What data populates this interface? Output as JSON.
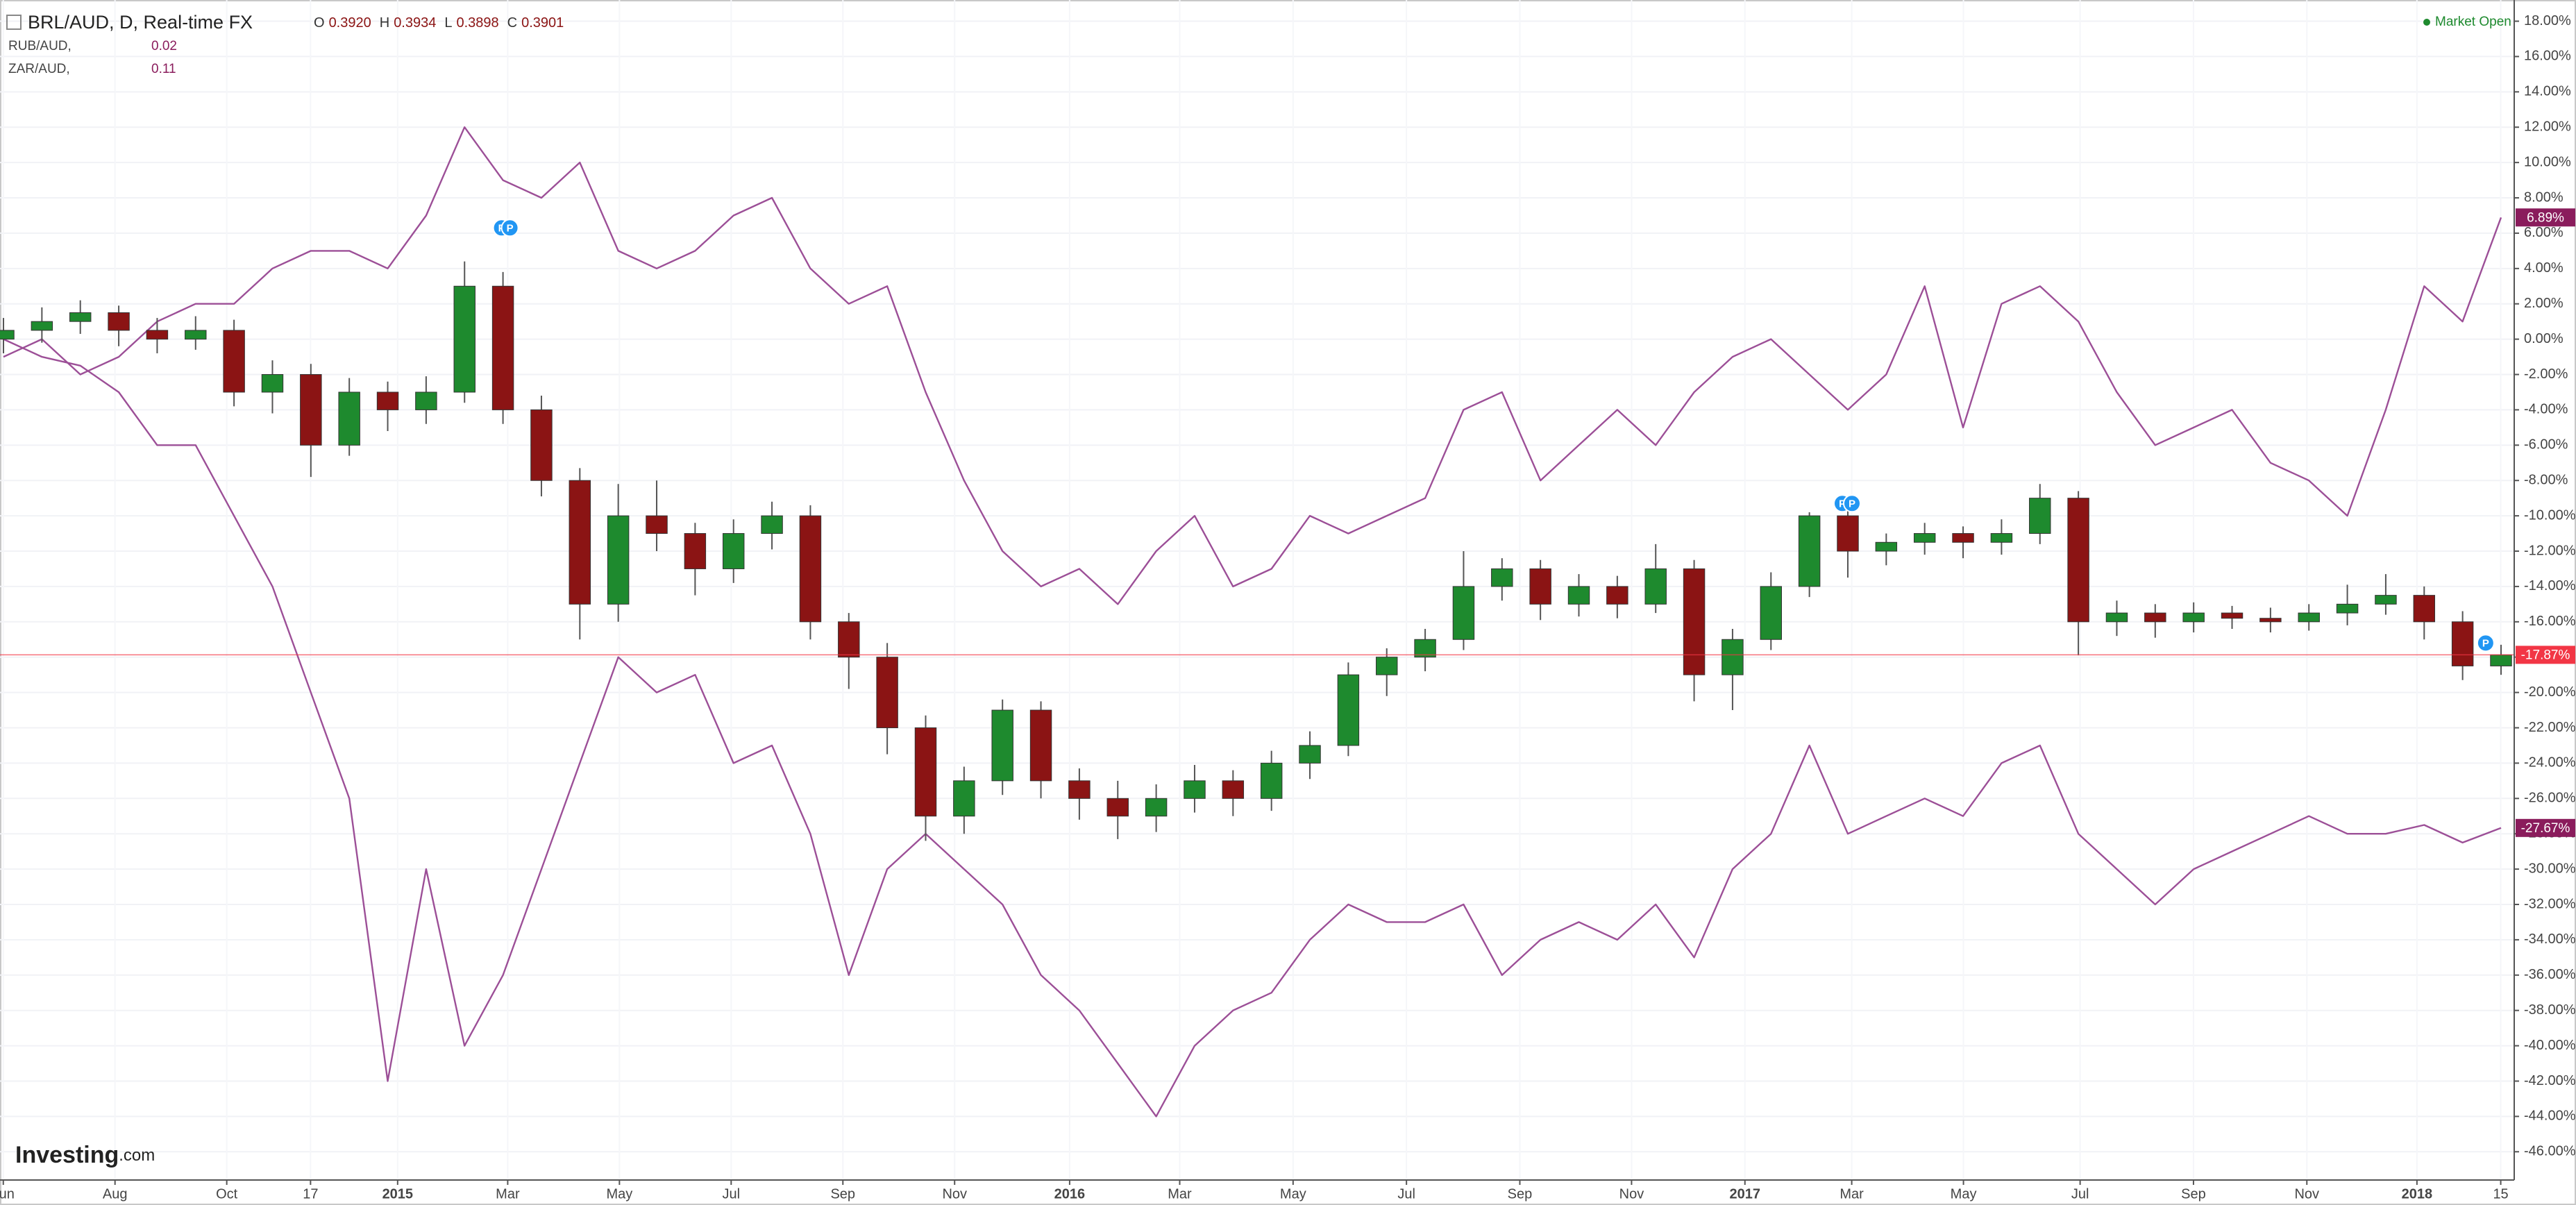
{
  "chart_data": {
    "type": "candlestick",
    "title": "BRL/AUD, D, Real-time FX",
    "ohlc_labels": [
      "O",
      "H",
      "L",
      "C"
    ],
    "ohlc_values": [
      "0.3920",
      "0.3934",
      "0.3898",
      "0.3901"
    ],
    "status": "Market Open",
    "brand": [
      "Investing",
      ".com"
    ],
    "event_marker": "P",
    "up_color": "#1e8a2e",
    "down_color": "#8b1414",
    "last_color": "#f23645",
    "last_label": "-17.87%",
    "candles": [
      [
        0,
        1.2,
        -0.8,
        0.5
      ],
      [
        0.5,
        1.8,
        -0.2,
        1
      ],
      [
        1,
        2.2,
        0.3,
        1.5
      ],
      [
        1.5,
        1.9,
        -0.4,
        0.5
      ],
      [
        0.5,
        1.2,
        -0.8,
        0
      ],
      [
        0,
        1.3,
        -0.6,
        0.5
      ],
      [
        0.5,
        1.1,
        -3.8,
        -3
      ],
      [
        -3,
        -1.2,
        -4.2,
        -2
      ],
      [
        -2,
        -1.4,
        -7.8,
        -6
      ],
      [
        -6,
        -2.2,
        -6.6,
        -3
      ],
      [
        -3,
        -2.4,
        -5.2,
        -4
      ],
      [
        -4,
        -2.1,
        -4.8,
        -3
      ],
      [
        -3,
        4.4,
        -3.6,
        3
      ],
      [
        3,
        3.8,
        -4.8,
        -4
      ],
      [
        -4,
        -3.2,
        -8.9,
        -8
      ],
      [
        -8,
        -7.3,
        -17,
        -15
      ],
      [
        -15,
        -8.2,
        -16,
        -10
      ],
      [
        -10,
        -8,
        -12,
        -11
      ],
      [
        -11,
        -10.4,
        -14.5,
        -13
      ],
      [
        -13,
        -10.2,
        -13.8,
        -11
      ],
      [
        -11,
        -9.2,
        -11.9,
        -10
      ],
      [
        -10,
        -9.4,
        -17,
        -16
      ],
      [
        -16,
        -15.5,
        -19.8,
        -18
      ],
      [
        -18,
        -17.2,
        -23.5,
        -22
      ],
      [
        -22,
        -21.3,
        -28.4,
        -27
      ],
      [
        -27,
        -24.2,
        -28,
        -25
      ],
      [
        -25,
        -20.4,
        -25.8,
        -21
      ],
      [
        -21,
        -20.5,
        -26,
        -25
      ],
      [
        -25,
        -24.3,
        -27.2,
        -26
      ],
      [
        -26,
        -25,
        -28.3,
        -27
      ],
      [
        -27,
        -25.2,
        -27.9,
        -26
      ],
      [
        -26,
        -24.1,
        -26.8,
        -25
      ],
      [
        -25,
        -24.4,
        -27,
        -26
      ],
      [
        -26,
        -23.3,
        -26.7,
        -24
      ],
      [
        -24,
        -22.2,
        -24.9,
        -23
      ],
      [
        -23,
        -18.3,
        -23.6,
        -19
      ],
      [
        -19,
        -17.5,
        -20.2,
        -18
      ],
      [
        -18,
        -16.4,
        -18.8,
        -17
      ],
      [
        -17,
        -12,
        -17.6,
        -14
      ],
      [
        -14,
        -12.4,
        -14.8,
        -13
      ],
      [
        -13,
        -12.5,
        -15.9,
        -15
      ],
      [
        -15,
        -13.3,
        -15.7,
        -14
      ],
      [
        -14,
        -13.4,
        -15.8,
        -15
      ],
      [
        -15,
        -11.6,
        -15.5,
        -13
      ],
      [
        -13,
        -12.5,
        -20.5,
        -19
      ],
      [
        -19,
        -16.4,
        -21,
        -17
      ],
      [
        -17,
        -13.2,
        -17.6,
        -14
      ],
      [
        -14,
        -9.8,
        -14.6,
        -10
      ],
      [
        -10,
        -9.6,
        -13.5,
        -12
      ],
      [
        -12,
        -11,
        -12.8,
        -11.5
      ],
      [
        -11.5,
        -10.4,
        -12.2,
        -11
      ],
      [
        -11,
        -10.6,
        -12.4,
        -11.5
      ],
      [
        -11.5,
        -10.2,
        -12.2,
        -11
      ],
      [
        -11,
        -8.2,
        -11.6,
        -9
      ],
      [
        -9,
        -8.6,
        -17.9,
        -16
      ],
      [
        -16,
        -14.8,
        -16.8,
        -15.5
      ],
      [
        -15.5,
        -15,
        -16.9,
        -16
      ],
      [
        -16,
        -14.9,
        -16.6,
        -15.5
      ],
      [
        -15.5,
        -15.1,
        -16.4,
        -15.8
      ],
      [
        -15.8,
        -15.2,
        -16.6,
        -16
      ],
      [
        -16,
        -15,
        -16.5,
        -15.5
      ],
      [
        -15.5,
        -13.9,
        -16.2,
        -15
      ],
      [
        -15,
        -13.3,
        -15.6,
        -14.5
      ],
      [
        -14.5,
        -14,
        -17,
        -16
      ],
      [
        -16,
        -15.4,
        -19.3,
        -18.5
      ],
      [
        -18.5,
        -17.3,
        -19,
        -17.87
      ]
    ],
    "series": [
      {
        "name": "RUB/AUD,",
        "price": 0.02,
        "color": "#9c4f97",
        "badge_color": "#8a1c5c",
        "last_label": "-27.67%",
        "values": [
          0,
          -1,
          -1.5,
          -3,
          -6,
          -6,
          -10,
          -14,
          -20,
          -26,
          -42,
          -30,
          -40,
          -36,
          -30,
          -24,
          -18,
          -20,
          -19,
          -24,
          -23,
          -28,
          -36,
          -30,
          -28,
          -30,
          -32,
          -36,
          -38,
          -41,
          -44,
          -40,
          -38,
          -37,
          -34,
          -32,
          -33,
          -33,
          -32,
          -36,
          -34,
          -33,
          -34,
          -32,
          -35,
          -30,
          -28,
          -23,
          -28,
          -27,
          -26,
          -27,
          -24,
          -23,
          -28,
          -30,
          -32,
          -30,
          -29,
          -28,
          -27,
          -28,
          -28,
          -27.5,
          -28.5,
          -27.67
        ]
      },
      {
        "name": "ZAR/AUD,",
        "price": 0.11,
        "color": "#9c4f97",
        "badge_color": "#8a1c5c",
        "last_label": "6.89%",
        "values": [
          -1,
          0,
          -2,
          -1,
          1,
          2,
          2,
          4,
          5,
          5,
          4,
          7,
          12,
          9,
          8,
          10,
          5,
          4,
          5,
          7,
          8,
          4,
          2,
          3,
          -3,
          -8,
          -12,
          -14,
          -13,
          -15,
          -12,
          -10,
          -14,
          -13,
          -10,
          -11,
          -10,
          -9,
          -4,
          -3,
          -8,
          -6,
          -4,
          -6,
          -3,
          -1,
          0,
          -2,
          -4,
          -2,
          3,
          -5,
          2,
          3,
          1,
          -3,
          -6,
          -5,
          -4,
          -7,
          -8,
          -10,
          -4,
          3,
          1,
          6.89
        ]
      }
    ],
    "ylim": [
      -47.6,
      19.2
    ],
    "yticks": [
      {
        "value": 18,
        "label": "18.00%"
      },
      {
        "value": 16,
        "label": "16.00%"
      },
      {
        "value": 14,
        "label": "14.00%"
      },
      {
        "value": 12,
        "label": "12.00%"
      },
      {
        "value": 10,
        "label": "10.00%"
      },
      {
        "value": 8,
        "label": "8.00%"
      },
      {
        "value": 6,
        "label": "6.00%"
      },
      {
        "value": 4,
        "label": "4.00%"
      },
      {
        "value": 2,
        "label": "2.00%"
      },
      {
        "value": 0,
        "label": "0.00%"
      },
      {
        "value": -2,
        "label": "-2.00%"
      },
      {
        "value": -4,
        "label": "-4.00%"
      },
      {
        "value": -6,
        "label": "-6.00%"
      },
      {
        "value": -8,
        "label": "-8.00%"
      },
      {
        "value": -10,
        "label": "-10.00%"
      },
      {
        "value": -12,
        "label": "-12.00%"
      },
      {
        "value": -14,
        "label": "-14.00%"
      },
      {
        "value": -16,
        "label": "-16.00%"
      },
      {
        "value": -18,
        "label": "-18.00%"
      },
      {
        "value": -20,
        "label": "-20.00%"
      },
      {
        "value": -22,
        "label": "-22.00%"
      },
      {
        "value": -24,
        "label": "-24.00%"
      },
      {
        "value": -26,
        "label": "-26.00%"
      },
      {
        "value": -28,
        "label": "-28.00%"
      },
      {
        "value": -30,
        "label": "-30.00%"
      },
      {
        "value": -32,
        "label": "-32.00%"
      },
      {
        "value": -34,
        "label": "-34.00%"
      },
      {
        "value": -36,
        "label": "-36.00%"
      },
      {
        "value": -38,
        "label": "-38.00%"
      },
      {
        "value": -40,
        "label": "-40.00%"
      },
      {
        "value": -42,
        "label": "-42.00%"
      },
      {
        "value": -44,
        "label": "-44.00%"
      },
      {
        "value": -46,
        "label": "-46.00%"
      }
    ],
    "xtick_labels": [
      "Jun",
      "Aug",
      "Oct",
      "17",
      "2015",
      "Mar",
      "May",
      "Jul",
      "Sep",
      "Nov",
      "2016",
      "Mar",
      "May",
      "Jul",
      "Sep",
      "Nov",
      "2017",
      "Mar",
      "May",
      "Jul",
      "Sep",
      "Nov",
      "2018",
      "15"
    ],
    "grid": true
  }
}
